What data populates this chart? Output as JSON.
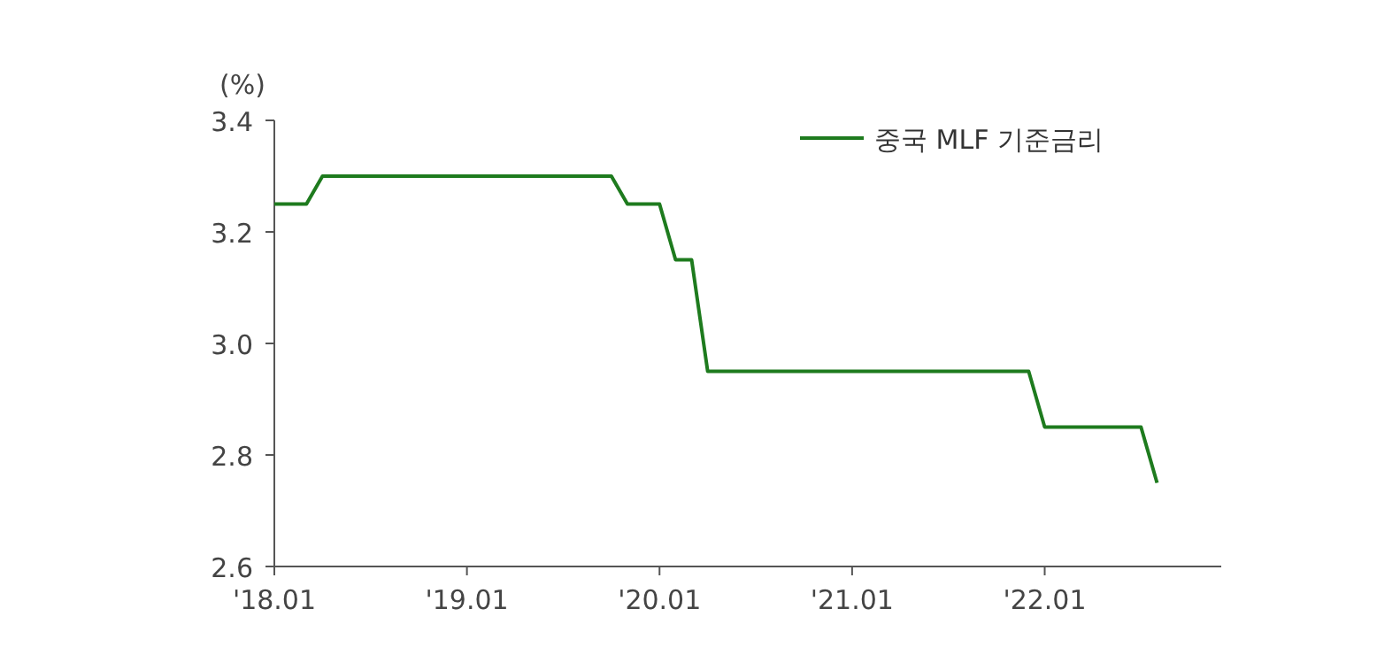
{
  "chart_data": {
    "type": "line",
    "ylabel": "(%)",
    "series": [
      {
        "name": "중국 MLF 기준금리",
        "color": "#1e7b1e",
        "x": [
          "2018-01",
          "2018-03",
          "2018-04",
          "2019-10",
          "2019-11",
          "2020-01",
          "2020-02",
          "2020-03",
          "2020-04",
          "2021-12",
          "2022-01",
          "2022-07",
          "2022-08"
        ],
        "values": [
          3.25,
          3.25,
          3.3,
          3.3,
          3.25,
          3.25,
          3.15,
          3.15,
          2.95,
          2.95,
          2.85,
          2.85,
          2.75
        ]
      }
    ],
    "xlim": [
      "2018-01",
      "2022-12"
    ],
    "xticks": [
      {
        "value": "2018-01",
        "label": "'18.01"
      },
      {
        "value": "2019-01",
        "label": "'19.01"
      },
      {
        "value": "2020-01",
        "label": "'20.01"
      },
      {
        "value": "2021-01",
        "label": "'21.01"
      },
      {
        "value": "2022-01",
        "label": "'22.01"
      }
    ],
    "ylim": [
      2.6,
      3.4
    ],
    "yticks": [
      {
        "value": 2.6,
        "label": "2.6"
      },
      {
        "value": 2.8,
        "label": "2.8"
      },
      {
        "value": 3.0,
        "label": "3.0"
      },
      {
        "value": 3.2,
        "label": "3.2"
      },
      {
        "value": 3.4,
        "label": "3.4"
      }
    ],
    "legend": "top right",
    "grid": false,
    "line_style": "solid"
  }
}
